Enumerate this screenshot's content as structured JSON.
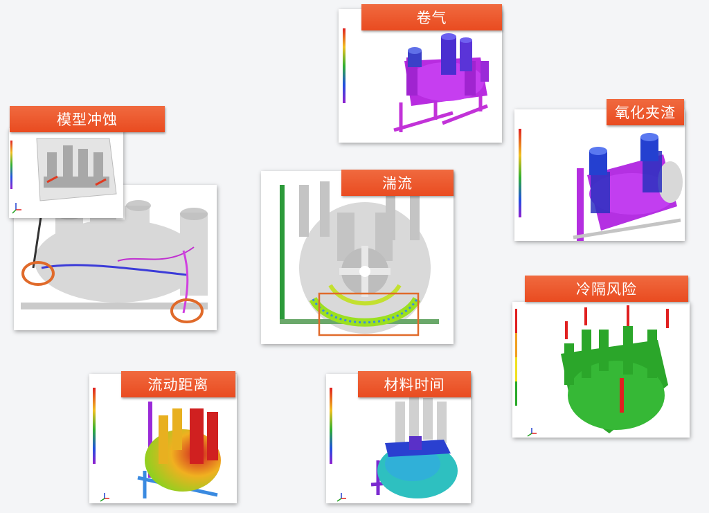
{
  "cards": {
    "juanqi": {
      "title": "卷气"
    },
    "yanghua": {
      "title": "氧化夹渣"
    },
    "moxing": {
      "title": "模型冲蚀"
    },
    "tuanliu": {
      "title": "湍流"
    },
    "lengge": {
      "title": "冷隔风险"
    },
    "liudong": {
      "title": "流动距离"
    },
    "cailiao": {
      "title": "材料时间"
    }
  },
  "colors": {
    "banner": "#ea5527",
    "magenta": "#d23cf0",
    "green": "#2aa92a",
    "highlight": "#e2632a"
  },
  "icons": [
    "axis-triad-icon",
    "color-legend",
    "casting-model"
  ]
}
